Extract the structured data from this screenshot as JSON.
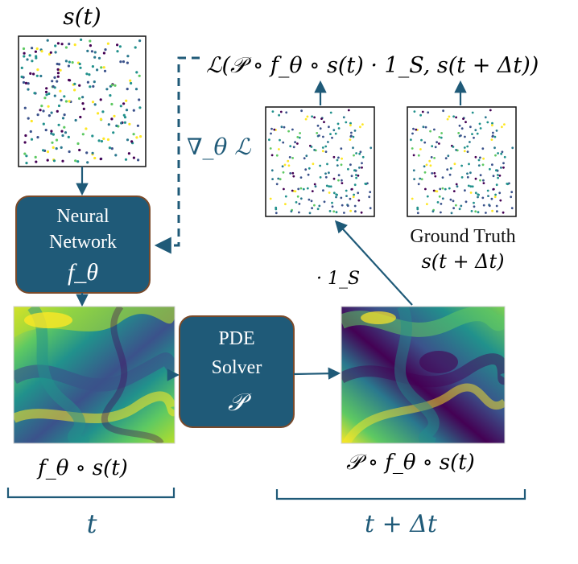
{
  "labels": {
    "input_state": "s(t)",
    "loss": "ℒ(𝒫 ∘ f_θ ∘ s(t) · 1_S,  s(t + Δt))",
    "gradient": "∇_θ ℒ",
    "nn_line1": "Neural",
    "nn_line2": "Network",
    "nn_symbol": "f_θ",
    "pde_line1": "PDE",
    "pde_line2": "Solver",
    "pde_symbol": "𝒫",
    "ground_truth_title": "Ground Truth",
    "ground_truth_state": "s(t + Δt)",
    "mask_op": "· 1_S",
    "field_left_caption": "f_θ ∘ s(t)",
    "field_right_caption": "𝒫 ∘ f_θ ∘ s(t)",
    "time_left": "t",
    "time_right": "t + Δt"
  },
  "colors": {
    "box_fill": "#1f5a78",
    "box_stroke": "#7a4a2a",
    "arrow": "#1f5a78",
    "bracket": "#1f5a78",
    "viridis_low": "#440154",
    "viridis_mid": "#21918c",
    "viridis_high": "#fde725"
  }
}
